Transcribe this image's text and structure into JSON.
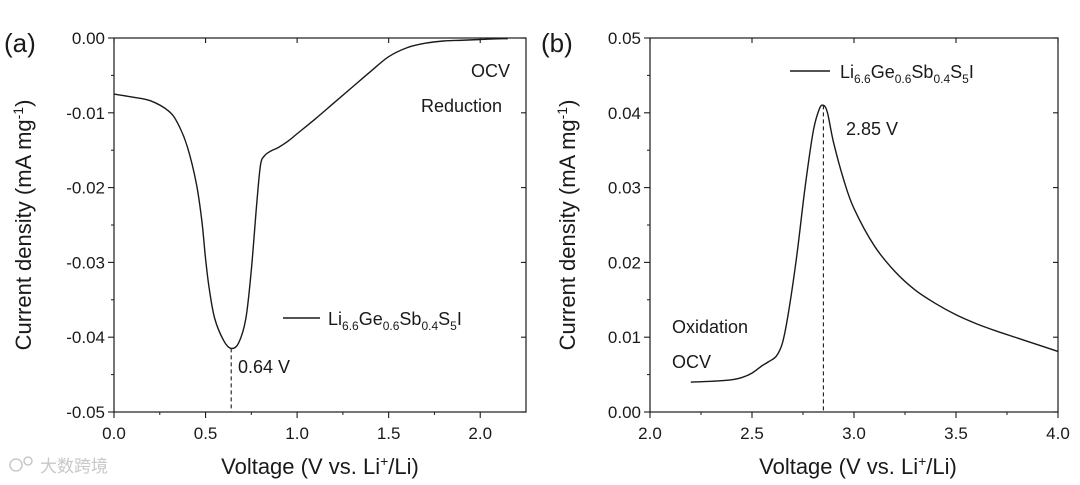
{
  "watermark": "大数跨境",
  "chart_data": [
    {
      "panel_label": "(a)",
      "type": "line",
      "xlabel": "Voltage (V vs. Li+/Li)",
      "ylabel": "Current density (mA mg-1)",
      "xlim": [
        0.0,
        2.25
      ],
      "ylim": [
        -0.05,
        0.0
      ],
      "xticks": [
        0.0,
        0.5,
        1.0,
        1.5,
        2.0
      ],
      "xtick_labels": [
        "0.0",
        "0.5",
        "1.0",
        "1.5",
        "2.0"
      ],
      "yticks": [
        0.0,
        -0.01,
        -0.02,
        -0.03,
        -0.04,
        -0.05
      ],
      "ytick_labels": [
        "0.00",
        "-0.01",
        "-0.02",
        "-0.03",
        "-0.04",
        "-0.05"
      ],
      "legend": {
        "base": "Li",
        "parts": [
          [
            "6.6",
            "Ge"
          ],
          [
            "0.6",
            "Sb"
          ],
          [
            "0.4",
            "S"
          ],
          [
            "5",
            "I"
          ]
        ]
      },
      "annotations": [
        "OCV",
        "Reduction",
        "0.64 V"
      ],
      "peak": {
        "x": 0.64,
        "y": -0.0415,
        "label": "0.64 V"
      },
      "series": [
        {
          "name": "Li6.6Ge0.6Sb0.4S5I",
          "x": [
            0.0,
            0.1,
            0.2,
            0.3,
            0.35,
            0.4,
            0.45,
            0.48,
            0.5,
            0.52,
            0.55,
            0.6,
            0.64,
            0.68,
            0.72,
            0.75,
            0.78,
            0.8,
            0.82,
            0.85,
            0.9,
            0.95,
            1.0,
            1.1,
            1.2,
            1.3,
            1.4,
            1.5,
            1.6,
            1.7,
            1.8,
            1.9,
            2.0,
            2.1,
            2.15
          ],
          "y": [
            -0.0075,
            -0.0079,
            -0.0084,
            -0.0098,
            -0.0115,
            -0.0145,
            -0.0195,
            -0.0245,
            -0.0295,
            -0.0335,
            -0.0375,
            -0.0405,
            -0.0415,
            -0.0408,
            -0.0375,
            -0.031,
            -0.022,
            -0.017,
            -0.0158,
            -0.0152,
            -0.0146,
            -0.0138,
            -0.0128,
            -0.0108,
            -0.0087,
            -0.0066,
            -0.0045,
            -0.0025,
            -0.0013,
            -0.0007,
            -0.0004,
            -0.0003,
            -0.0002,
            -0.0001,
            -0.0001
          ]
        }
      ]
    },
    {
      "panel_label": "(b)",
      "type": "line",
      "xlabel": "Voltage (V vs. Li+/Li)",
      "ylabel": "Current density (mA mg-1)",
      "xlim": [
        2.0,
        4.0
      ],
      "ylim": [
        0.0,
        0.05
      ],
      "xticks": [
        2.0,
        2.5,
        3.0,
        3.5,
        4.0
      ],
      "xtick_labels": [
        "2.0",
        "2.5",
        "3.0",
        "3.5",
        "4.0"
      ],
      "yticks": [
        0.0,
        0.01,
        0.02,
        0.03,
        0.04,
        0.05
      ],
      "ytick_labels": [
        "0.00",
        "0.01",
        "0.02",
        "0.03",
        "0.04",
        "0.05"
      ],
      "legend": {
        "base": "Li",
        "parts": [
          [
            "6.6",
            "Ge"
          ],
          [
            "0.6",
            "Sb"
          ],
          [
            "0.4",
            "S"
          ],
          [
            "5",
            "I"
          ]
        ]
      },
      "annotations": [
        "Oxidation",
        "OCV",
        "2.85 V"
      ],
      "peak": {
        "x": 2.85,
        "y": 0.041,
        "label": "2.85 V"
      },
      "series": [
        {
          "name": "Li6.6Ge0.6Sb0.4S5I",
          "x": [
            2.2,
            2.3,
            2.4,
            2.45,
            2.5,
            2.55,
            2.58,
            2.62,
            2.65,
            2.68,
            2.72,
            2.76,
            2.8,
            2.83,
            2.85,
            2.87,
            2.9,
            2.95,
            3.0,
            3.1,
            3.2,
            3.3,
            3.4,
            3.5,
            3.6,
            3.7,
            3.8,
            3.9,
            4.0
          ],
          "y": [
            0.004,
            0.0041,
            0.0043,
            0.0046,
            0.0052,
            0.0062,
            0.0067,
            0.0075,
            0.0093,
            0.0135,
            0.021,
            0.03,
            0.0375,
            0.0405,
            0.041,
            0.04,
            0.036,
            0.031,
            0.0272,
            0.0222,
            0.0188,
            0.0163,
            0.0145,
            0.013,
            0.0118,
            0.0108,
            0.0099,
            0.009,
            0.0081
          ]
        }
      ]
    }
  ]
}
